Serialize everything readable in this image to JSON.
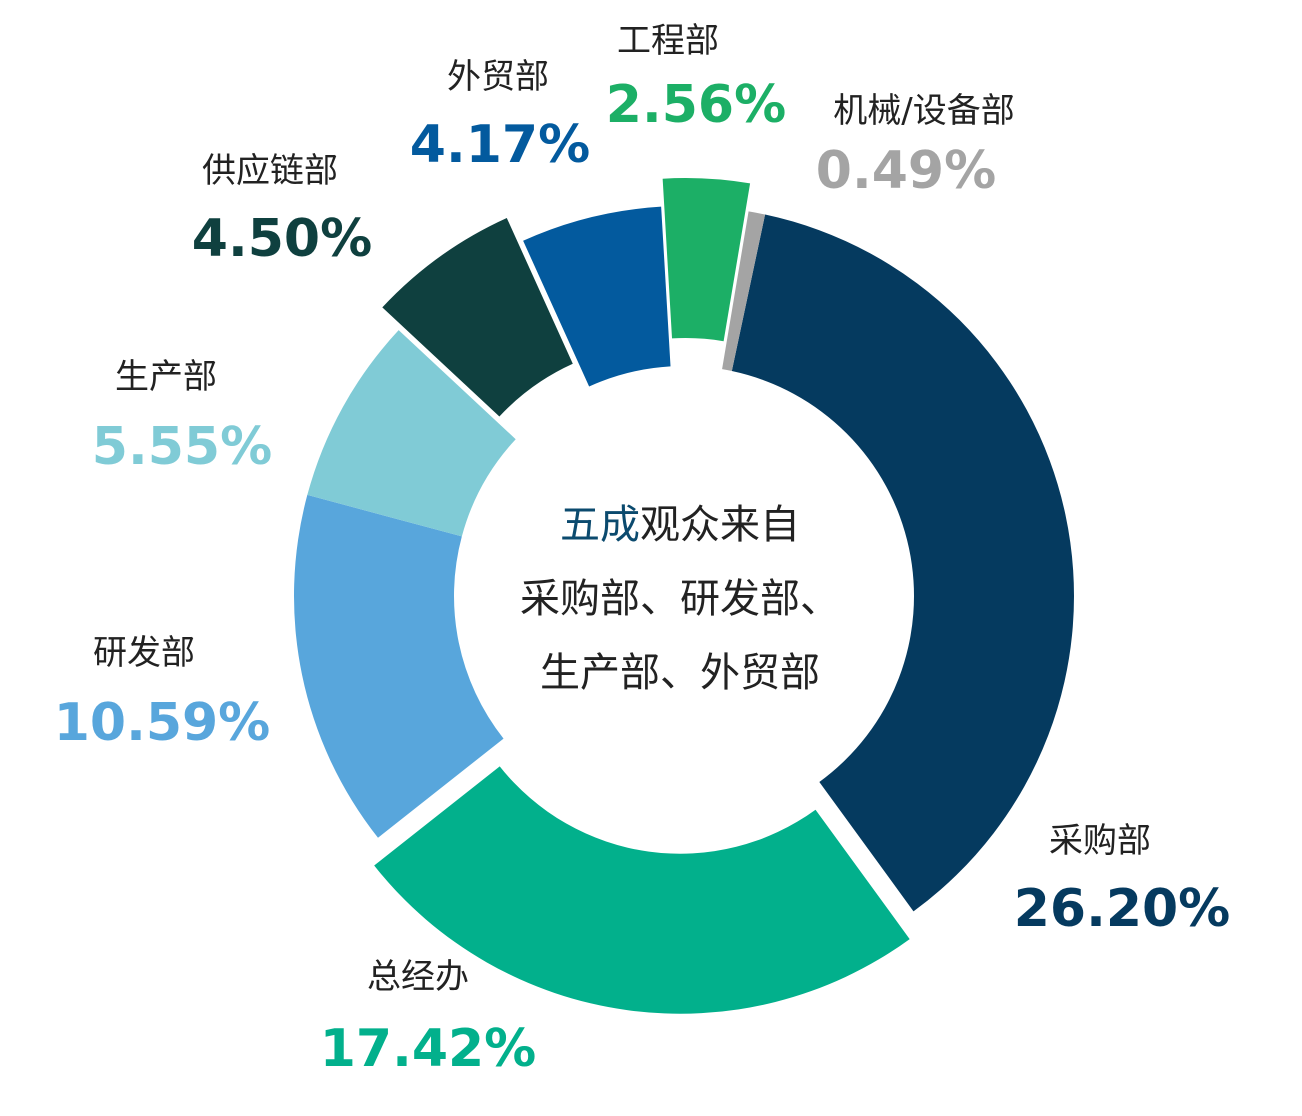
{
  "chart_data": {
    "type": "pie",
    "donut": true,
    "title": "",
    "center_text": {
      "accent": "五成",
      "line1_rest": "观众来自",
      "line2": "采购部、研发部、",
      "line3": "生产部、外贸部"
    },
    "slices": [
      {
        "name": "采购部",
        "label": "26.20%",
        "value": 26.2,
        "color": "#053a5f",
        "exploded": false
      },
      {
        "name": "总经办",
        "label": "17.42%",
        "value": 17.42,
        "color": "#02b08c",
        "exploded": true
      },
      {
        "name": "研发部",
        "label": "10.59%",
        "value": 10.59,
        "color": "#58a6dc",
        "exploded": false
      },
      {
        "name": "生产部",
        "label": "5.55%",
        "value": 5.55,
        "color": "#80cbd6",
        "exploded": false
      },
      {
        "name": "供应链部",
        "label": "4.50%",
        "value": 4.5,
        "color": "#0f403f",
        "exploded": true
      },
      {
        "name": "外贸部",
        "label": "4.17%",
        "value": 4.17,
        "color": "#035a9e",
        "exploded": false
      },
      {
        "name": "工程部",
        "label": "2.56%",
        "value": 2.56,
        "color": "#1caf66",
        "exploded": true
      },
      {
        "name": "机械/设备部",
        "label": "0.49%",
        "value": 0.49,
        "color": "#a4a4a4",
        "exploded": false
      }
    ]
  }
}
